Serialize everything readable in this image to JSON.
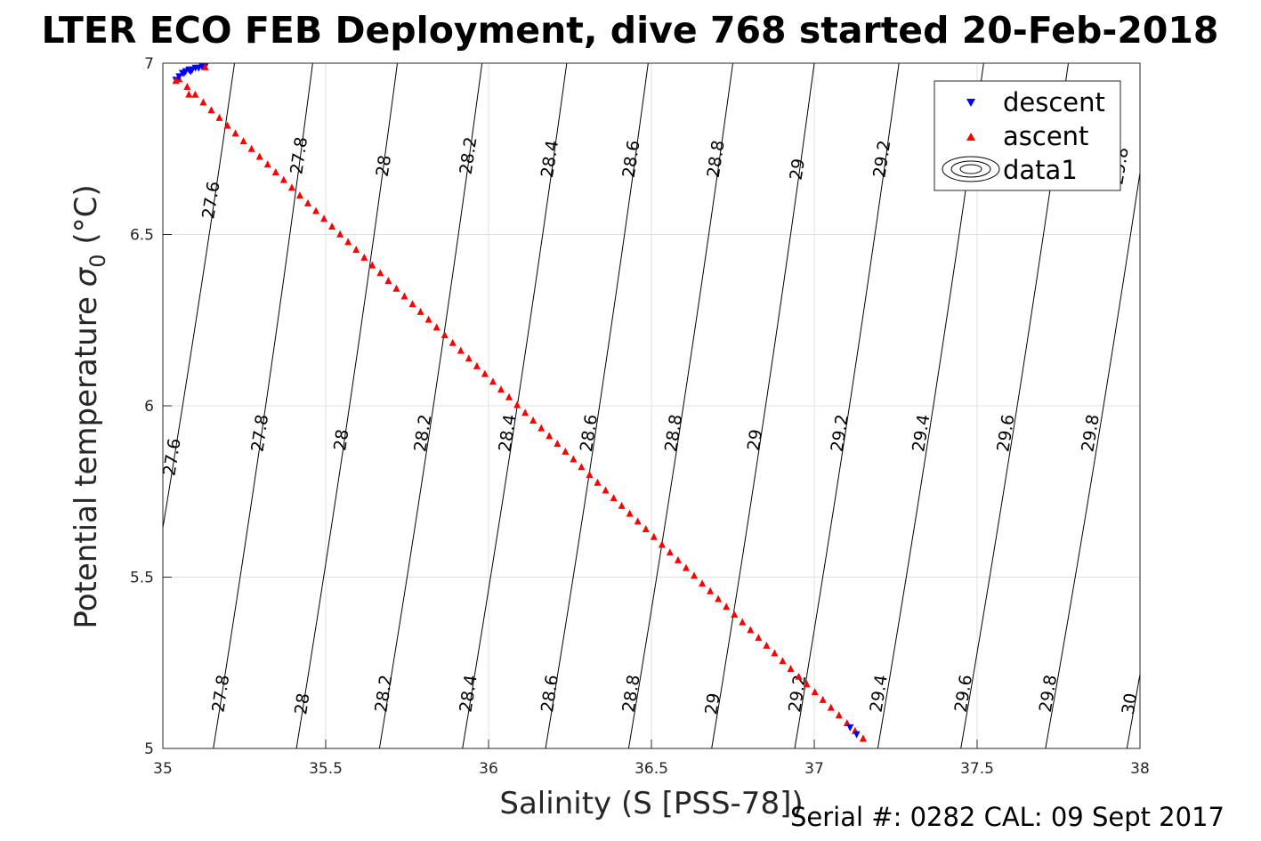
{
  "chart_data": {
    "type": "scatter",
    "title": "LTER ECO FEB Deployment, dive 768 started 20-Feb-2018",
    "xlabel": "Salinity (S [PSS-78])",
    "ylabel_main": "Potential temperature ",
    "ylabel_sigma": "σ",
    "ylabel_sub": "0",
    "ylabel_unit": " (°C)",
    "xlim": [
      35,
      38
    ],
    "ylim": [
      5,
      7
    ],
    "xticks": [
      "35",
      "35.5",
      "36",
      "36.5",
      "37",
      "37.5",
      "38"
    ],
    "yticks": [
      "5",
      "5.5",
      "6",
      "6.5",
      "7"
    ],
    "grid": true,
    "legend_position": "top-right",
    "legend": [
      "descent",
      "ascent",
      "data1"
    ],
    "descent_color": "#0000ff",
    "ascent_color": "#ff0000",
    "series": [
      {
        "name": "descent",
        "marker": "triangle-down",
        "points": [
          [
            35.04,
            6.95
          ],
          [
            35.05,
            6.96
          ],
          [
            35.06,
            6.97
          ],
          [
            35.07,
            6.975
          ],
          [
            35.08,
            6.98
          ],
          [
            35.09,
            6.98
          ],
          [
            35.1,
            6.985
          ],
          [
            35.11,
            6.985
          ],
          [
            35.12,
            6.99
          ],
          [
            35.13,
            6.99
          ],
          [
            35.065,
            6.97
          ],
          [
            35.085,
            6.975
          ],
          [
            37.11,
            5.06
          ],
          [
            37.13,
            5.04
          ]
        ]
      },
      {
        "name": "ascent",
        "marker": "triangle-up",
        "points": [
          [
            35.04,
            6.95
          ],
          [
            35.08,
            6.91
          ],
          [
            35.13,
            6.99
          ],
          [
            37.15,
            5.03
          ]
        ]
      }
    ],
    "ascent_line": {
      "start": [
        35.05,
        6.955
      ],
      "end": [
        37.15,
        5.03
      ],
      "count": 86
    },
    "contour_levels": [
      {
        "label": "27.6",
        "bottom": [
          34.885,
          5.0
        ],
        "top": [
          35.22,
          7.0
        ],
        "labels": [
          [
            35.15,
            6.6
          ],
          [
            35.03,
            5.85
          ]
        ]
      },
      {
        "label": "27.8",
        "bottom": [
          35.155,
          5.0
        ],
        "top": [
          35.46,
          7.0
        ],
        "labels": [
          [
            35.42,
            6.73
          ],
          [
            35.3,
            5.92
          ],
          [
            35.18,
            5.16
          ]
        ]
      },
      {
        "label": "28",
        "bottom": [
          35.41,
          5.0
        ],
        "top": [
          35.72,
          7.0
        ],
        "labels": [
          [
            35.68,
            6.7
          ],
          [
            35.55,
            5.9
          ],
          [
            35.43,
            5.13
          ]
        ]
      },
      {
        "label": "28.2",
        "bottom": [
          35.665,
          5.0
        ],
        "top": [
          35.98,
          7.0
        ],
        "labels": [
          [
            35.94,
            6.73
          ],
          [
            35.8,
            5.92
          ],
          [
            35.68,
            5.16
          ]
        ]
      },
      {
        "label": "28.4",
        "bottom": [
          35.92,
          5.0
        ],
        "top": [
          36.24,
          7.0
        ],
        "labels": [
          [
            36.19,
            6.72
          ],
          [
            36.06,
            5.92
          ],
          [
            35.94,
            5.16
          ]
        ]
      },
      {
        "label": "28.6",
        "bottom": [
          36.175,
          5.0
        ],
        "top": [
          36.49,
          7.0
        ],
        "labels": [
          [
            36.44,
            6.72
          ],
          [
            36.31,
            5.92
          ],
          [
            36.19,
            5.16
          ]
        ]
      },
      {
        "label": "28.8",
        "bottom": [
          36.43,
          5.0
        ],
        "top": [
          36.75,
          7.0
        ],
        "labels": [
          [
            36.7,
            6.72
          ],
          [
            36.57,
            5.92
          ],
          [
            36.44,
            5.16
          ]
        ]
      },
      {
        "label": "29",
        "bottom": [
          36.685,
          5.0
        ],
        "top": [
          37.0,
          7.0
        ],
        "labels": [
          [
            36.95,
            6.69
          ],
          [
            36.82,
            5.9
          ],
          [
            36.69,
            5.13
          ]
        ]
      },
      {
        "label": "29.2",
        "bottom": [
          36.94,
          5.0
        ],
        "top": [
          37.26,
          7.0
        ],
        "labels": [
          [
            37.21,
            6.72
          ],
          [
            37.08,
            5.92
          ],
          [
            36.95,
            5.16
          ]
        ]
      },
      {
        "label": "29.4",
        "bottom": [
          37.195,
          5.0
        ],
        "top": [
          37.52,
          7.0
        ],
        "labels": [
          [
            37.33,
            5.92
          ],
          [
            37.2,
            5.16
          ]
        ]
      },
      {
        "label": "29.6",
        "bottom": [
          37.45,
          5.0
        ],
        "top": [
          37.78,
          7.0
        ],
        "labels": [
          [
            37.59,
            5.92
          ],
          [
            37.46,
            5.16
          ]
        ]
      },
      {
        "label": "29.8",
        "bottom": [
          37.71,
          5.0
        ],
        "top": [
          38.05,
          7.0
        ],
        "labels": [
          [
            37.94,
            6.7
          ],
          [
            37.85,
            5.92
          ],
          [
            37.72,
            5.16
          ]
        ]
      },
      {
        "label": "30",
        "bottom": [
          37.96,
          5.0
        ],
        "top": [
          38.3,
          7.0
        ],
        "labels": [
          [
            37.97,
            5.13
          ]
        ]
      }
    ],
    "footer": "Serial #: 0282  CAL: 09 Sept 2017"
  }
}
